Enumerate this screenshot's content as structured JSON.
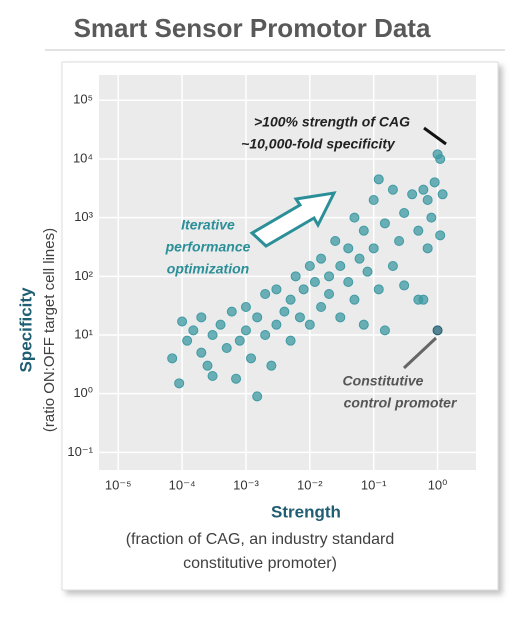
{
  "chart_data": {
    "type": "scatter",
    "title": "Smart Sensor Promotor Data",
    "x_label": "Strength",
    "x_sublabel": [
      "(fraction of CAG, an industry standard",
      "constitutive promoter)"
    ],
    "y_label": "Specificity",
    "y_sublabel": "(ratio ON:OFF target cell lines)",
    "log_x": true,
    "log_y": true,
    "grid": true,
    "xlim": [
      5e-06,
      4
    ],
    "ylim": [
      0.05,
      270000
    ],
    "xticks": [
      {
        "value": 1e-05,
        "label": "10⁻⁵"
      },
      {
        "value": 0.0001,
        "label": "10⁻⁴"
      },
      {
        "value": 0.001,
        "label": "10⁻³"
      },
      {
        "value": 0.01,
        "label": "10⁻²"
      },
      {
        "value": 0.1,
        "label": "10⁻¹"
      },
      {
        "value": 1,
        "label": "10⁰"
      }
    ],
    "yticks": [
      {
        "value": 0.1,
        "label": "10⁻¹"
      },
      {
        "value": 1,
        "label": "10⁰"
      },
      {
        "value": 10,
        "label": "10¹"
      },
      {
        "value": 100,
        "label": "10²"
      },
      {
        "value": 1000,
        "label": "10³"
      },
      {
        "value": 10000,
        "label": "10⁴"
      },
      {
        "value": 100000,
        "label": "10⁵"
      }
    ],
    "annotations": {
      "top": [
        ">100% strength of CAG",
        "~10,000-fold specificity"
      ],
      "middle": [
        "Iterative",
        "performance",
        "optimization"
      ],
      "bottom": [
        "Constitutive",
        "control promoter"
      ]
    },
    "series": [
      {
        "color": "#3f9aa3",
        "x": [
          7e-05,
          9e-05,
          0.0001,
          0.00012,
          0.00015,
          0.0002,
          0.0002,
          0.00025,
          0.0003,
          0.0003,
          0.0004,
          0.0005,
          0.0006,
          0.0007,
          0.0008,
          0.001,
          0.001,
          0.0012,
          0.0015,
          0.0015,
          0.002,
          0.002,
          0.0025,
          0.003,
          0.003,
          0.004,
          0.005,
          0.005,
          0.006,
          0.007,
          0.008,
          0.01,
          0.01,
          0.012,
          0.015,
          0.015,
          0.02,
          0.02,
          0.025,
          0.03,
          0.03,
          0.04,
          0.04,
          0.05,
          0.05,
          0.06,
          0.07,
          0.07,
          0.08,
          0.1,
          0.1,
          0.12,
          0.12,
          0.15,
          0.15,
          0.2,
          0.2,
          0.25,
          0.3,
          0.3,
          0.4,
          0.5,
          0.5,
          0.6,
          0.7,
          0.7,
          0.8,
          0.9,
          1.0,
          1.1,
          1.2,
          1.1,
          0.6
        ],
        "y": [
          4,
          1.5,
          17,
          8,
          12,
          5,
          20,
          3,
          10,
          2,
          15,
          6,
          25,
          1.8,
          8,
          30,
          12,
          4,
          0.9,
          20,
          50,
          10,
          3,
          15,
          60,
          25,
          40,
          8,
          100,
          20,
          60,
          15,
          150,
          80,
          30,
          200,
          50,
          100,
          400,
          150,
          20,
          300,
          80,
          1000,
          40,
          200,
          600,
          15,
          120,
          2000,
          300,
          4500,
          60,
          800,
          12,
          150,
          3000,
          400,
          70,
          1200,
          2500,
          600,
          40,
          3000,
          2000,
          300,
          1000,
          4000,
          12000,
          10000,
          2500,
          500,
          40
        ]
      },
      {
        "color": "#1f5d72",
        "x": [
          1.0
        ],
        "y": [
          12
        ]
      }
    ]
  }
}
